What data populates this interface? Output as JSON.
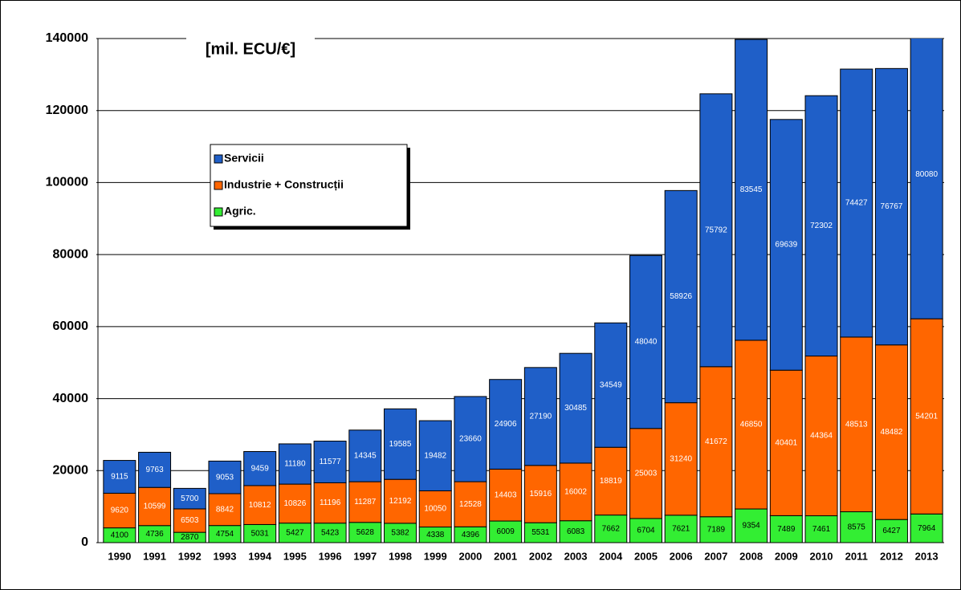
{
  "chart_data": {
    "type": "stacked_bar",
    "title": "[mil. ECU/€]",
    "categories": [
      "1990",
      "1991",
      "1992",
      "1993",
      "1994",
      "1995",
      "1996",
      "1997",
      "1998",
      "1999",
      "2000",
      "2001",
      "2002",
      "2003",
      "2004",
      "2005",
      "2006",
      "2007",
      "2008",
      "2009",
      "2010",
      "2011",
      "2012",
      "2013"
    ],
    "series": [
      {
        "name": "Agric.",
        "color": "#33ee33",
        "label_color": "#000000",
        "values": [
          4100,
          4736,
          2870,
          4754,
          5031,
          5427,
          5423,
          5628,
          5382,
          4338,
          4396,
          6009,
          5531,
          6083,
          7662,
          6704,
          7621,
          7189,
          9354,
          7489,
          7461,
          8575,
          6427,
          7964
        ]
      },
      {
        "name": "Industrie + Construcții",
        "color": "#ff6600",
        "label_color": "#ffffff",
        "values": [
          9620,
          10599,
          6503,
          8842,
          10812,
          10826,
          11196,
          11287,
          12192,
          10050,
          12528,
          14403,
          15916,
          16002,
          18819,
          25003,
          31240,
          41672,
          46850,
          40401,
          44364,
          48513,
          48482,
          54201
        ]
      },
      {
        "name": "Servicii",
        "color": "#1f5fc8",
        "label_color": "#ffffff",
        "values": [
          9115,
          9763,
          5700,
          9053,
          9459,
          11180,
          11577,
          14345,
          19585,
          19482,
          23660,
          24906,
          27190,
          30485,
          34549,
          48040,
          58926,
          75792,
          83545,
          69639,
          72302,
          74427,
          76767,
          80080
        ]
      }
    ],
    "ylim": [
      0,
      140000
    ],
    "yticks": [
      0,
      20000,
      40000,
      60000,
      80000,
      100000,
      120000,
      140000
    ],
    "grid": true
  }
}
